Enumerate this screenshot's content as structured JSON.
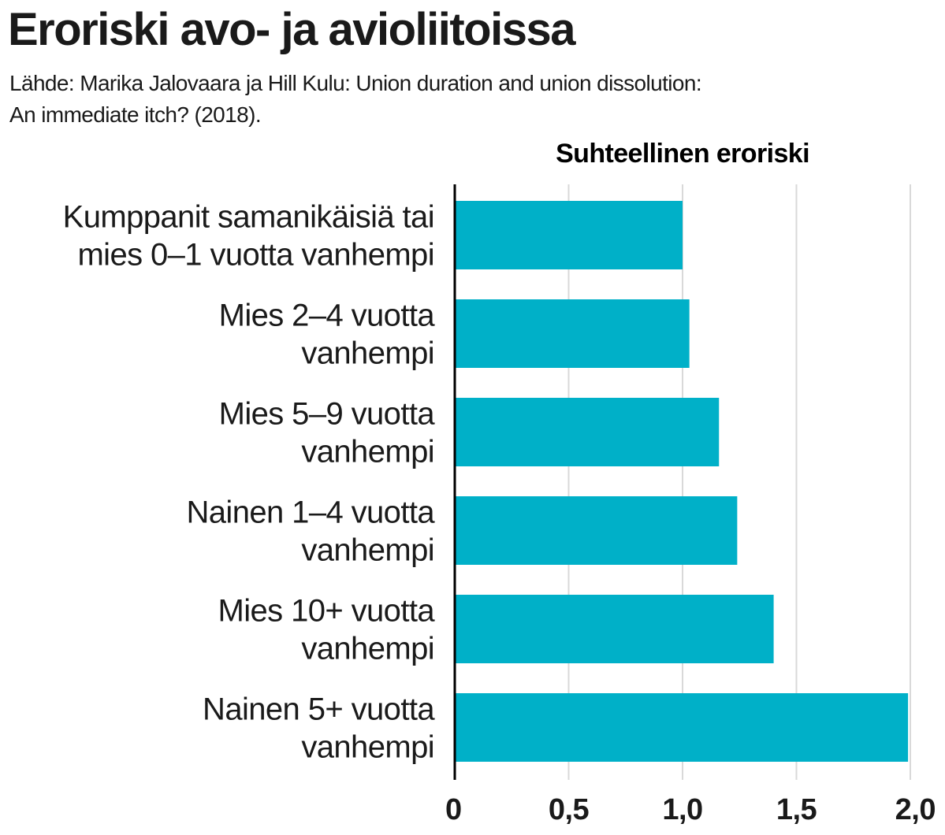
{
  "title": "Eroriski avo- ja avioliitoissa",
  "subtitle": {
    "line1": "Lähde: Marika Jalovaara ja Hill Kulu: Union duration and union dissolution:",
    "line2": "An immediate itch? (2018)."
  },
  "colors": {
    "bar": "#00B0C8",
    "axis": "#000000",
    "grid": "#d9d9d9",
    "text": "#1a1a1a"
  },
  "chart_data": {
    "type": "bar",
    "orientation": "horizontal",
    "title": "Eroriski avo- ja avioliitoissa",
    "xlabel": "Suhteellinen eroriski",
    "ylabel": "",
    "xlim": [
      0,
      2.0
    ],
    "grid": true,
    "categories": [
      [
        "Kumppanit samanikäisiä tai",
        "mies 0–1 vuotta vanhempi"
      ],
      [
        "Mies 2–4 vuotta",
        "vanhempi"
      ],
      [
        "Mies 5–9 vuotta",
        "vanhempi"
      ],
      [
        "Nainen 1–4 vuotta",
        "vanhempi"
      ],
      [
        "Mies 10+ vuotta",
        "vanhempi"
      ],
      [
        "Nainen 5+ vuotta",
        "vanhempi"
      ]
    ],
    "values": [
      1.0,
      1.03,
      1.16,
      1.24,
      1.4,
      1.99
    ],
    "ticks": [
      0,
      0.5,
      1.0,
      1.5,
      2.0
    ],
    "tick_labels": [
      "0",
      "0,5",
      "1,0",
      "1,5",
      "2,0"
    ]
  }
}
